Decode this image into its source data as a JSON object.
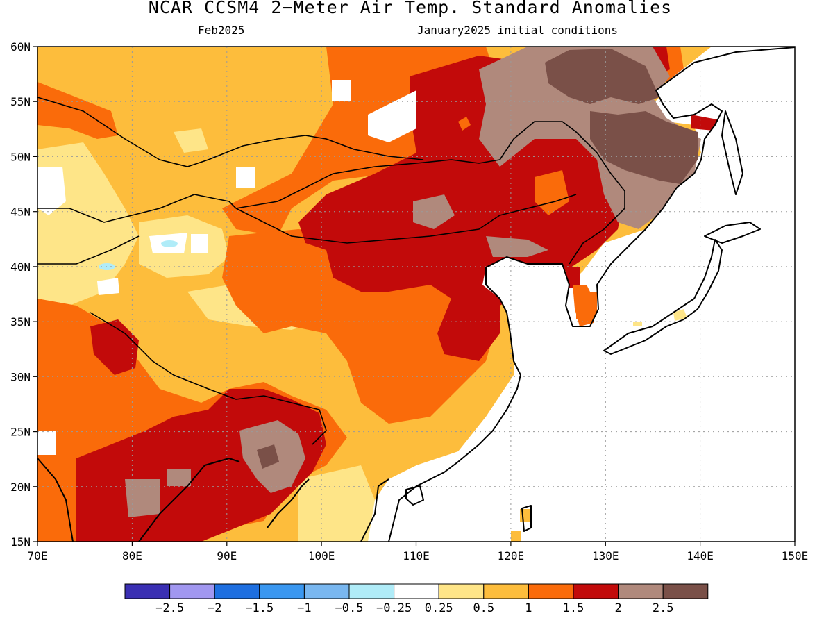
{
  "header": {
    "title": "NCAR_CCSM4 2−Meter Air Temp. Standard Anomalies",
    "valid_month": "Feb2025",
    "init": "January2025 initial conditions"
  },
  "map": {
    "lon_min": 70,
    "lon_max": 150,
    "lat_min": 15,
    "lat_max": 60,
    "lon_ticks": [
      "70E",
      "80E",
      "90E",
      "100E",
      "110E",
      "120E",
      "130E",
      "140E",
      "150E"
    ],
    "lat_ticks": [
      "15N",
      "20N",
      "25N",
      "30N",
      "35N",
      "40N",
      "45N",
      "50N",
      "55N",
      "60N"
    ],
    "gridlines": "dotted"
  },
  "colorbar": {
    "colors": [
      "#3a2fb3",
      "#a197f0",
      "#1e6fe0",
      "#3a97f0",
      "#79b7f0",
      "#b0ecf8",
      "#ffffff",
      "#fee588",
      "#fdbd3c",
      "#fa6b0a",
      "#c20a0a",
      "#b0897c",
      "#7a5048"
    ],
    "labels": [
      "−2.5",
      "−2",
      "−1.5",
      "−1",
      "−0.5",
      "−0.25",
      "0.25",
      "0.5",
      "1",
      "1.5",
      "2",
      "2.5"
    ]
  }
}
